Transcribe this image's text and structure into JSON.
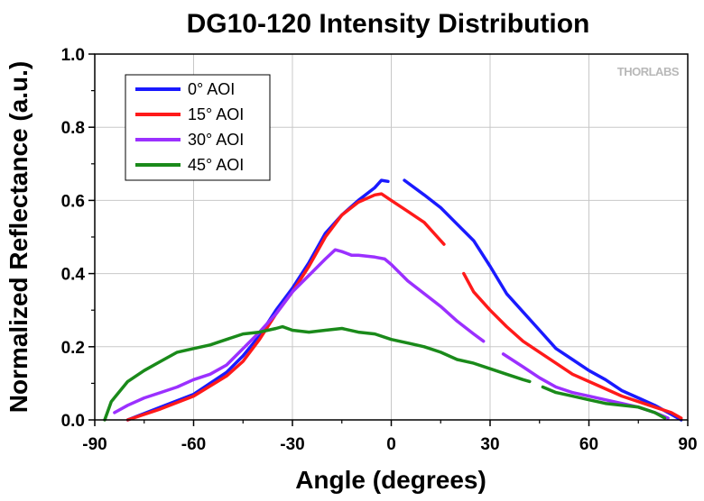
{
  "chart_data": {
    "type": "line",
    "title": "DG10-120 Intensity Distribution",
    "xlabel": "Angle (degrees)",
    "ylabel": "Normalized Reflectance (a.u.)",
    "xlim": [
      -90,
      90
    ],
    "ylim": [
      0,
      1.0
    ],
    "x_ticks": [
      "-90",
      "-60",
      "-30",
      "0",
      "30",
      "60",
      "90"
    ],
    "y_ticks": [
      "0.0",
      "0.2",
      "0.4",
      "0.6",
      "0.8",
      "1.0"
    ],
    "grid": true,
    "legend_position": "top-left",
    "brand": "THORLABS",
    "series": [
      {
        "name": "0° AOI",
        "color": "#1a1aff",
        "segments": [
          [
            [
              -80,
              0.0
            ],
            [
              -70,
              0.035
            ],
            [
              -60,
              0.07
            ],
            [
              -50,
              0.13
            ],
            [
              -45,
              0.175
            ],
            [
              -40,
              0.23
            ],
            [
              -35,
              0.3
            ],
            [
              -30,
              0.36
            ],
            [
              -25,
              0.43
            ],
            [
              -20,
              0.51
            ],
            [
              -15,
              0.56
            ],
            [
              -10,
              0.6
            ],
            [
              -5,
              0.635
            ],
            [
              -3,
              0.655
            ],
            [
              -1,
              0.652
            ]
          ],
          [
            [
              4,
              0.655
            ],
            [
              10,
              0.615
            ],
            [
              15,
              0.58
            ],
            [
              20,
              0.535
            ],
            [
              25,
              0.49
            ],
            [
              30,
              0.42
            ],
            [
              35,
              0.345
            ],
            [
              40,
              0.295
            ],
            [
              45,
              0.245
            ],
            [
              50,
              0.195
            ],
            [
              55,
              0.165
            ],
            [
              60,
              0.135
            ],
            [
              65,
              0.11
            ],
            [
              70,
              0.08
            ],
            [
              75,
              0.06
            ],
            [
              80,
              0.04
            ],
            [
              85,
              0.015
            ],
            [
              88,
              0.0
            ]
          ]
        ]
      },
      {
        "name": "15° AOI",
        "color": "#ff1a1a",
        "segments": [
          [
            [
              -80,
              0.0
            ],
            [
              -70,
              0.03
            ],
            [
              -60,
              0.065
            ],
            [
              -50,
              0.12
            ],
            [
              -45,
              0.16
            ],
            [
              -40,
              0.22
            ],
            [
              -35,
              0.29
            ],
            [
              -30,
              0.35
            ],
            [
              -25,
              0.42
            ],
            [
              -20,
              0.5
            ],
            [
              -15,
              0.56
            ],
            [
              -10,
              0.595
            ],
            [
              -5,
              0.615
            ],
            [
              -3,
              0.618
            ],
            [
              0,
              0.6
            ],
            [
              5,
              0.57
            ],
            [
              10,
              0.54
            ],
            [
              14,
              0.5
            ],
            [
              16,
              0.48
            ]
          ],
          [
            [
              22,
              0.4
            ],
            [
              25,
              0.35
            ],
            [
              30,
              0.3
            ],
            [
              35,
              0.255
            ],
            [
              40,
              0.215
            ],
            [
              45,
              0.185
            ],
            [
              50,
              0.155
            ],
            [
              55,
              0.125
            ],
            [
              60,
              0.105
            ],
            [
              65,
              0.085
            ],
            [
              70,
              0.065
            ],
            [
              75,
              0.05
            ],
            [
              80,
              0.035
            ],
            [
              85,
              0.02
            ],
            [
              88,
              0.005
            ]
          ]
        ]
      },
      {
        "name": "30° AOI",
        "color": "#9b30ff",
        "segments": [
          [
            [
              -84,
              0.02
            ],
            [
              -80,
              0.04
            ],
            [
              -75,
              0.06
            ],
            [
              -70,
              0.075
            ],
            [
              -65,
              0.09
            ],
            [
              -60,
              0.11
            ],
            [
              -55,
              0.125
            ],
            [
              -50,
              0.15
            ],
            [
              -45,
              0.195
            ],
            [
              -40,
              0.24
            ],
            [
              -35,
              0.29
            ],
            [
              -30,
              0.35
            ],
            [
              -25,
              0.395
            ],
            [
              -20,
              0.44
            ],
            [
              -17,
              0.465
            ],
            [
              -15,
              0.46
            ],
            [
              -12,
              0.45
            ],
            [
              -10,
              0.45
            ],
            [
              -5,
              0.445
            ],
            [
              -2,
              0.44
            ],
            [
              0,
              0.425
            ],
            [
              5,
              0.38
            ],
            [
              10,
              0.345
            ],
            [
              15,
              0.31
            ],
            [
              20,
              0.27
            ],
            [
              25,
              0.235
            ],
            [
              28,
              0.215
            ]
          ],
          [
            [
              34,
              0.18
            ],
            [
              40,
              0.145
            ],
            [
              45,
              0.115
            ],
            [
              50,
              0.09
            ],
            [
              55,
              0.075
            ],
            [
              60,
              0.065
            ],
            [
              65,
              0.055
            ],
            [
              70,
              0.045
            ],
            [
              75,
              0.035
            ],
            [
              80,
              0.02
            ],
            [
              84,
              0.005
            ]
          ]
        ]
      },
      {
        "name": "45° AOI",
        "color": "#1a8a1a",
        "segments": [
          [
            [
              -87,
              0.0
            ],
            [
              -85,
              0.05
            ],
            [
              -80,
              0.105
            ],
            [
              -75,
              0.135
            ],
            [
              -70,
              0.16
            ],
            [
              -65,
              0.185
            ],
            [
              -60,
              0.195
            ],
            [
              -55,
              0.205
            ],
            [
              -50,
              0.22
            ],
            [
              -45,
              0.235
            ],
            [
              -40,
              0.24
            ],
            [
              -35,
              0.25
            ],
            [
              -33,
              0.255
            ],
            [
              -30,
              0.245
            ],
            [
              -25,
              0.24
            ],
            [
              -20,
              0.245
            ],
            [
              -15,
              0.25
            ],
            [
              -10,
              0.24
            ],
            [
              -5,
              0.235
            ],
            [
              0,
              0.22
            ],
            [
              5,
              0.21
            ],
            [
              10,
              0.2
            ],
            [
              15,
              0.185
            ],
            [
              20,
              0.165
            ],
            [
              25,
              0.155
            ],
            [
              30,
              0.14
            ],
            [
              35,
              0.125
            ],
            [
              40,
              0.11
            ],
            [
              42,
              0.105
            ]
          ],
          [
            [
              46,
              0.09
            ],
            [
              50,
              0.075
            ],
            [
              55,
              0.065
            ],
            [
              60,
              0.055
            ],
            [
              65,
              0.045
            ],
            [
              70,
              0.04
            ],
            [
              75,
              0.035
            ],
            [
              80,
              0.02
            ],
            [
              83,
              0.005
            ]
          ]
        ]
      }
    ]
  }
}
